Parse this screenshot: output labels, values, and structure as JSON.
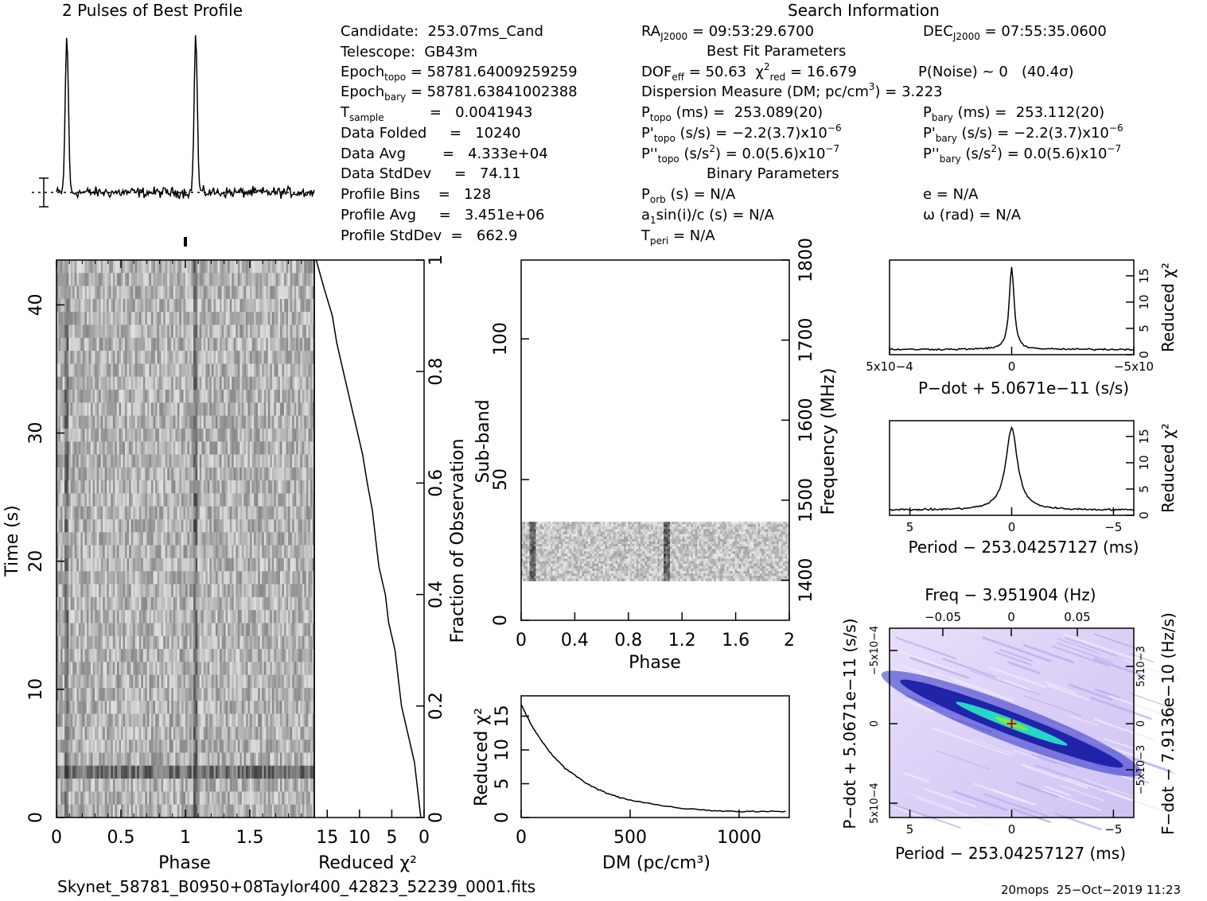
{
  "header": {
    "profile_title": "2 Pulses of Best Profile",
    "search_title": "Search Information",
    "best_fit_title": "Best Fit Parameters",
    "binary_title": "Binary Parameters"
  },
  "info_left": [
    {
      "label": "Candidate:",
      "value": "253.07ms_Cand"
    },
    {
      "label": "Telescope:",
      "value": "GB43m"
    },
    {
      "label": "Epoch_topo",
      "value": "= 58781.64009259259"
    },
    {
      "label": "Epoch_bary",
      "value": "= 58781.63841002388"
    },
    {
      "label": "T_sample",
      "value": "=   0.0041943"
    },
    {
      "label": "Data Folded",
      "value": "=   10240"
    },
    {
      "label": "Data Avg",
      "value": "=   4.333e+04"
    },
    {
      "label": "Data StdDev",
      "value": "=   74.11"
    },
    {
      "label": "Profile Bins",
      "value": "=   128"
    },
    {
      "label": "Profile Avg",
      "value": "=   3.451e+06"
    },
    {
      "label": "Profile StdDev",
      "value": "=   662.9"
    }
  ],
  "search_info": {
    "ra": "RA_J2000 = 09:53:29.6700",
    "dec": "DEC_J2000 = 07:55:35.0600",
    "dof": "DOF_eff = 50.63",
    "chi2": "χ2_red = 16.679",
    "pnoise": "P(Noise) ~ 0   (40.4σ)",
    "dm": "Dispersion Measure (DM; pc/cm3) = 3.223",
    "ptopo": "P_topo (ms) =  253.089(20)",
    "pbary": "P_bary (ms) =  253.112(20)",
    "pdtopo": "P'_topo (s/s) = −2.2(3.7)x10−6",
    "pdbary": "P'_bary (s/s) = −2.2(3.7)x10−6",
    "pddtopo": "P''_topo (s/s2) = 0.0(5.6)x10−7",
    "pddbary": "P''_bary (s/s2) = 0.0(5.6)x10−7",
    "porb": "P_orb (s) = N/A",
    "asini": "a1sin(i)/c (s) = N/A",
    "tperi": "T_peri = N/A",
    "ecc": "e = N/A",
    "omega": "ω (rad) = N/A"
  },
  "footer": {
    "filename": "Skynet_58781_B0950+08Taylor400_42823_52239_0001.fits",
    "stamp": "20mops  25−Oct−2019 11:23"
  },
  "chart_data": [
    {
      "type": "line",
      "id": "profile",
      "title": "2 Pulses of Best Profile",
      "xlim": [
        0,
        2
      ],
      "peaks_phase": [
        0.08,
        1.08
      ],
      "baseline": 0.0,
      "peak_height": 1.0
    },
    {
      "type": "heatmap",
      "id": "time-phase",
      "xlabel": "Phase",
      "ylabel": "Time (s)",
      "xlim": [
        0,
        2
      ],
      "ylim": [
        0,
        43.5
      ],
      "xticks": [
        "0",
        "0.5",
        "1",
        "1.5"
      ],
      "yticks": [
        "0",
        "10",
        "20",
        "30",
        "40"
      ],
      "dark_columns_phase": [
        0.08,
        1.08
      ],
      "dark_rows_time": [
        2.9,
        3.3
      ]
    },
    {
      "type": "line",
      "id": "time-chi2",
      "xlabel": "Reduced χ2",
      "ylabel": "Fraction of Observation",
      "xlim": [
        17,
        0
      ],
      "ylim": [
        0,
        1
      ],
      "xticks": [
        "15",
        "10",
        "5",
        "0"
      ],
      "yticks": [
        "0",
        "0.2",
        "0.4",
        "0.6",
        "0.8",
        "1"
      ],
      "points": [
        [
          0.5,
          0
        ],
        [
          1.0,
          0.05
        ],
        [
          1.5,
          0.1
        ],
        [
          2.5,
          0.15
        ],
        [
          3.5,
          0.2
        ],
        [
          4.0,
          0.25
        ],
        [
          4.5,
          0.3
        ],
        [
          5.5,
          0.35
        ],
        [
          6.0,
          0.4
        ],
        [
          7.0,
          0.45
        ],
        [
          7.5,
          0.5
        ],
        [
          8.0,
          0.55
        ],
        [
          8.8,
          0.6
        ],
        [
          9.5,
          0.65
        ],
        [
          10.5,
          0.7
        ],
        [
          11.5,
          0.75
        ],
        [
          12.5,
          0.8
        ],
        [
          13.5,
          0.85
        ],
        [
          14.2,
          0.9
        ],
        [
          15.5,
          0.95
        ],
        [
          16.7,
          1.0
        ]
      ]
    },
    {
      "type": "heatmap",
      "id": "subband-phase",
      "xlabel": "Phase",
      "ylabel": "Sub-band",
      "y2label": "Frequency (MHz)",
      "xlim": [
        0,
        2
      ],
      "ylim": [
        0,
        128
      ],
      "y2lim": [
        1350,
        1800
      ],
      "xticks": [
        "0",
        "0.4",
        "0.8",
        "1.2",
        "1.6",
        "2"
      ],
      "yticks": [
        "0",
        "50",
        "100"
      ],
      "y2ticks": [
        "1400",
        "1500",
        "1600",
        "1700",
        "1800"
      ],
      "data_band": [
        14,
        35
      ],
      "dark_columns_phase": [
        0.08,
        1.08
      ]
    },
    {
      "type": "line",
      "id": "dm-chi2",
      "xlabel": "DM (pc/cm3)",
      "ylabel": "Reduced χ2",
      "xlim": [
        0,
        1230
      ],
      "ylim": [
        0,
        18
      ],
      "xticks": [
        "0",
        "500",
        "1000"
      ],
      "yticks": [
        "0",
        "5",
        "10",
        "15"
      ],
      "points": [
        [
          0,
          16.7
        ],
        [
          50,
          13.5
        ],
        [
          100,
          11.0
        ],
        [
          150,
          9.0
        ],
        [
          200,
          7.3
        ],
        [
          250,
          6.2
        ],
        [
          300,
          5.0
        ],
        [
          350,
          4.2
        ],
        [
          400,
          3.5
        ],
        [
          450,
          3.0
        ],
        [
          500,
          2.6
        ],
        [
          600,
          2.0
        ],
        [
          700,
          1.5
        ],
        [
          800,
          1.2
        ],
        [
          900,
          1.0
        ],
        [
          1000,
          0.9
        ],
        [
          1100,
          0.9
        ],
        [
          1230,
          0.9
        ]
      ]
    },
    {
      "type": "line",
      "id": "pdot-chi2",
      "xlabel": "P−dot + 5.0671e−11 (s/s)",
      "ylabel": "Reduced χ2",
      "xlim": [
        0.0005,
        -0.0005
      ],
      "ylim": [
        0,
        18
      ],
      "xticks": [
        "5x10−4",
        "0",
        "−5x10"
      ],
      "yticks": [
        "0",
        "5",
        "10",
        "15"
      ],
      "peak": 16.7,
      "baseline": 1.0
    },
    {
      "type": "line",
      "id": "period-chi2",
      "xlabel": "Period − 253.04257127 (ms)",
      "ylabel": "Reduced χ2",
      "xlim": [
        6,
        -6
      ],
      "ylim": [
        0,
        18
      ],
      "xticks": [
        "5",
        "0",
        "−5"
      ],
      "yticks": [
        "0",
        "5",
        "10",
        "15"
      ],
      "peak": 16.6,
      "baseline": 1.0
    },
    {
      "type": "heatmap",
      "id": "ppdot",
      "title": "Freq − 3.951904 (Hz)",
      "xlabel": "Period − 253.04257127 (ms)",
      "ylabel": "P−dot + 5.0671e−11 (s/s)",
      "y2label": "F−dot − 7.9136e−10 (Hz/s)",
      "xlim": [
        6,
        -6
      ],
      "ylim": [
        -0.0006,
        0.0006
      ],
      "xticks": [
        "5",
        "0",
        "−5"
      ],
      "topticks": [
        "−0.05",
        "0",
        "0.05"
      ],
      "yticks": [
        "−5x10−4",
        "0",
        "5x10−4"
      ],
      "y2ticks": [
        "5x10−3",
        "0",
        "−5x10−3"
      ]
    }
  ]
}
